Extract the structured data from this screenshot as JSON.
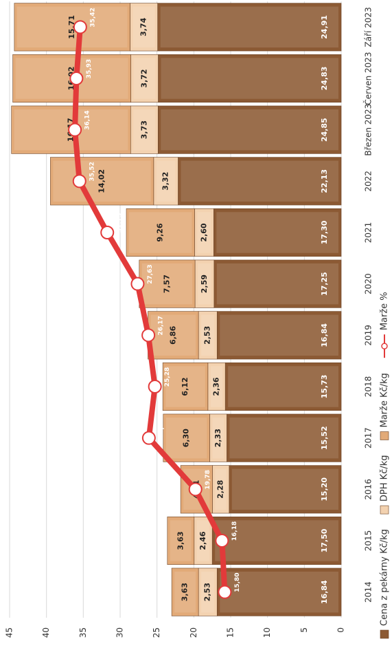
{
  "chart_data": {
    "type": "bar_line",
    "categories": [
      "2014",
      "2015",
      "2016",
      "2017",
      "2018",
      "2019",
      "2020",
      "2021",
      "2022",
      "Březen 2023",
      "Červen 2023",
      "Září 2023"
    ],
    "series": [
      {
        "name": "Cena z pekárny Kč/kg",
        "color": "#8c5a34",
        "values": [
          16.84,
          17.5,
          15.2,
          15.52,
          15.73,
          16.84,
          17.25,
          17.3,
          22.13,
          24.85,
          24.83,
          24.91
        ],
        "value_labels": [
          "16,84",
          "17,50",
          "15,20",
          "15,52",
          "15,73",
          "16,84",
          "17,25",
          "17,30",
          "22,13",
          "24,85",
          "24,83",
          "24,91"
        ]
      },
      {
        "name": "DPH Kč/kg",
        "color": "#f3d2b0",
        "values": [
          2.53,
          2.46,
          2.28,
          2.33,
          2.36,
          2.53,
          2.59,
          2.6,
          3.32,
          3.73,
          3.72,
          3.74
        ],
        "value_labels": [
          "2,53",
          "2,46",
          "2,28",
          "2,33",
          "2,36",
          "2,53",
          "2,59",
          "2,60",
          "3,32",
          "3,73",
          "3,72",
          "3,74"
        ]
      },
      {
        "name": "Marže Kč/kg",
        "color": "#e2aa78",
        "values": [
          3.63,
          3.63,
          4.31,
          6.3,
          6.12,
          6.86,
          7.57,
          9.26,
          14.02,
          16.17,
          16.02,
          15.71
        ],
        "value_labels": [
          "3,63",
          "3,63",
          "4,31",
          "6,30",
          "6,12",
          "6,86",
          "7,57",
          "9,26",
          "14,02",
          "16,17",
          "16,02",
          "15,71"
        ]
      },
      {
        "name": "Marže %",
        "color": "#e23a3a",
        "line": true,
        "values": [
          15.8,
          16.18,
          19.78,
          26.1,
          25.28,
          26.17,
          27.63,
          31.75,
          35.52,
          36.14,
          35.93,
          35.42
        ],
        "value_labels": [
          "15,80",
          "16,18",
          "19,78",
          "26,10",
          "25,28",
          "26,17",
          "27,63",
          "31,75",
          "35,52",
          "36,14",
          "35,93",
          "35,42"
        ]
      }
    ],
    "ylim": [
      0,
      45
    ],
    "yticks": [
      0,
      5,
      10,
      15,
      20,
      25,
      30,
      35,
      40,
      45
    ],
    "grid": true,
    "legend": "bottom"
  }
}
